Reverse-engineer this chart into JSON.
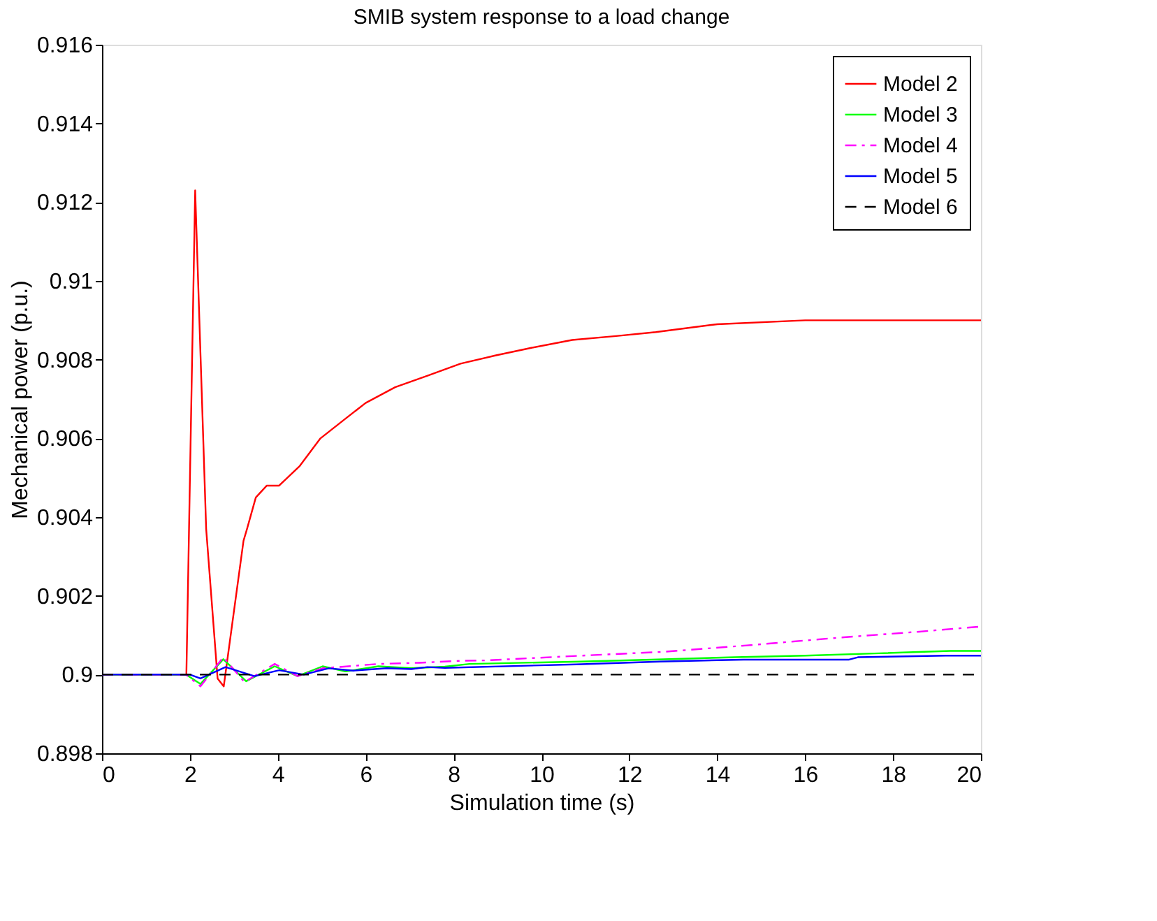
{
  "chart_data": {
    "type": "line",
    "title": "SMIB system response to a load change",
    "xlabel": "Simulation time (s)",
    "ylabel": "Mechanical power (p.u.)",
    "xlim": [
      0,
      20
    ],
    "xticks": [
      0,
      2,
      4,
      6,
      8,
      10,
      12,
      14,
      16,
      18,
      20
    ],
    "ylim": [
      0.898,
      0.916
    ],
    "yticks": [
      0.898,
      0.9,
      0.902,
      0.904,
      0.906,
      0.908,
      0.91,
      0.912,
      0.914,
      0.916
    ],
    "grid": false,
    "legend": "top right",
    "marker": "none",
    "series": [
      {
        "name": "Model 2",
        "color": "#ff0000",
        "line_style": "solid",
        "x": [
          0,
          1.92,
          2.12,
          2.37,
          2.63,
          2.77,
          3.22,
          3.3,
          3.5,
          3.75,
          4.03,
          4.5,
          4.97,
          5.54,
          6.0,
          6.67,
          7.43,
          8.16,
          8.93,
          9.77,
          10.7,
          11.7,
          12.6,
          14,
          16,
          20
        ],
        "values": [
          0.9,
          0.9,
          0.9123,
          0.9037,
          0.8999,
          0.8997,
          0.9034,
          0.9037,
          0.9045,
          0.9048,
          0.9048,
          0.9053,
          0.906,
          0.9065,
          0.9069,
          0.9073,
          0.9076,
          0.9079,
          0.9081,
          0.9083,
          0.9085,
          0.9086,
          0.9087,
          0.9089,
          0.909,
          0.909
        ]
      },
      {
        "name": "Model 3",
        "color": "#00ff00",
        "line_style": "solid",
        "x": [
          0,
          1.91,
          2.24,
          2.76,
          3.28,
          3.93,
          4.45,
          5.02,
          5.54,
          6.29,
          7.04,
          7.8,
          8.36,
          10.9,
          12.5,
          14.4,
          16.0,
          17.7,
          19.3,
          20
        ],
        "values": [
          0.9,
          0.9,
          0.89976,
          0.90039,
          0.89983,
          0.90021,
          0.89996,
          0.90021,
          0.90008,
          0.90021,
          0.90016,
          0.9002,
          0.90027,
          0.90033,
          0.90038,
          0.90044,
          0.90048,
          0.90054,
          0.9006,
          0.9006
        ]
      },
      {
        "name": "Model 4",
        "color": "#ff00ff",
        "line_style": "dashdot",
        "x": [
          0,
          1.91,
          2.24,
          2.76,
          3.24,
          3.93,
          4.45,
          5.02,
          6.29,
          7.22,
          8.16,
          8.74,
          10.9,
          12.8,
          14.67,
          16.8,
          18.6,
          20
        ],
        "values": [
          0.9,
          0.9,
          0.8997,
          0.90044,
          0.89981,
          0.90027,
          0.89996,
          0.90016,
          0.90027,
          0.9003,
          0.90035,
          0.90036,
          0.90048,
          0.90058,
          0.90074,
          0.90094,
          0.90109,
          0.90122
        ]
      },
      {
        "name": "Model 5",
        "color": "#0000ff",
        "line_style": "solid",
        "x": [
          0,
          2.0,
          2.24,
          2.81,
          3.47,
          4.03,
          4.59,
          5.16,
          5.72,
          6.48,
          7.04,
          7.4,
          7.8,
          10.8,
          12.7,
          14.6,
          17.0,
          17.2,
          19.2,
          20
        ],
        "values": [
          0.9,
          0.9,
          0.8999,
          0.90019,
          0.89996,
          0.90011,
          0.9,
          0.90016,
          0.9001,
          0.90016,
          0.90014,
          0.90019,
          0.90017,
          0.90026,
          0.90033,
          0.90038,
          0.90038,
          0.90044,
          0.90048,
          0.90048
        ]
      },
      {
        "name": "Model 6",
        "color": "#000000",
        "line_style": "dashed",
        "x": [
          0,
          20
        ],
        "values": [
          0.9,
          0.9
        ]
      }
    ]
  }
}
